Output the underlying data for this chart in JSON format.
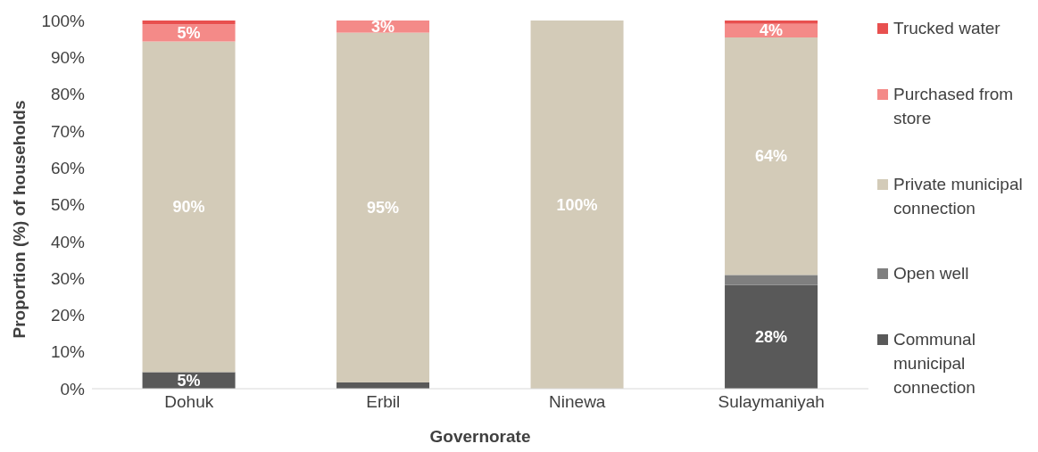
{
  "chart_data": {
    "type": "bar",
    "stacked": true,
    "xlabel": "Governorate",
    "ylabel": "Proportion (%) of households",
    "categories": [
      "Dohuk",
      "Erbil",
      "Ninewa",
      "Sulaymaniyah"
    ],
    "series": [
      {
        "name": "Communal municipal connection",
        "color": "#595959",
        "values": [
          4.5,
          1.7,
          0,
          28.2
        ],
        "value_labels": [
          "5%",
          null,
          null,
          "28%"
        ]
      },
      {
        "name": "Open well",
        "color": "#7f7f7f",
        "values": [
          0,
          0,
          0,
          2.7
        ],
        "value_labels": [
          null,
          null,
          null,
          null
        ]
      },
      {
        "name": "Private municipal connection",
        "color": "#d3cbb8",
        "values": [
          89.8,
          95.0,
          100,
          64.5
        ],
        "value_labels": [
          "90%",
          "95%",
          "100%",
          "64%"
        ]
      },
      {
        "name": "Purchased from store",
        "color": "#f48a88",
        "values": [
          4.7,
          3.3,
          0,
          3.7
        ],
        "value_labels": [
          "5%",
          "3%",
          null,
          "4%"
        ]
      },
      {
        "name": "Trucked water",
        "color": "#e8504f",
        "values": [
          1.0,
          0,
          0,
          0.9
        ],
        "value_labels": [
          null,
          null,
          null,
          null
        ]
      }
    ],
    "ylim": [
      0,
      100
    ],
    "yticks": [
      {
        "value": 0,
        "label": "0%"
      },
      {
        "value": 10,
        "label": "10%"
      },
      {
        "value": 20,
        "label": "20%"
      },
      {
        "value": 30,
        "label": "30%"
      },
      {
        "value": 40,
        "label": "40%"
      },
      {
        "value": 50,
        "label": "50%"
      },
      {
        "value": 60,
        "label": "60%"
      },
      {
        "value": 70,
        "label": "70%"
      },
      {
        "value": 80,
        "label": "80%"
      },
      {
        "value": 90,
        "label": "90%"
      },
      {
        "value": 100,
        "label": "100%"
      }
    ],
    "grid": false,
    "legend": "right"
  }
}
